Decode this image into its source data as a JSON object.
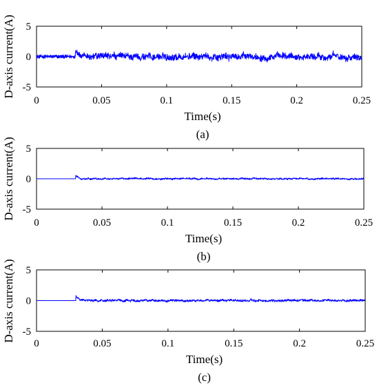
{
  "figure": {
    "colors": {
      "signal": "#0000ff",
      "axis": "#000000",
      "background": "#ffffff"
    }
  },
  "chart_data": [
    {
      "type": "line",
      "caption": "(a)",
      "xlabel": "Time(s)",
      "ylabel": "D-axis current(A)",
      "xlim": [
        0,
        0.25
      ],
      "ylim": [
        -5,
        5
      ],
      "x_ticks": [
        "0",
        "0.05",
        "0.1",
        "0.15",
        "0.2",
        "0.25"
      ],
      "y_ticks": [
        "5",
        "0",
        "-5"
      ],
      "grid": false,
      "series": [
        {
          "color": "#0000ff",
          "description_points": {
            "x": [
              0,
              0.03,
              0.032,
              0.05,
              0.1,
              0.15,
              0.2,
              0.25
            ],
            "y": [
              0,
              0,
              1.3,
              -1.0,
              0.9,
              -1.1,
              1.0,
              0
            ]
          },
          "noise_amplitude_before_0.03": 0.3,
          "noise_amplitude_after_0.03": 1.0
        }
      ]
    },
    {
      "type": "line",
      "caption": "(b)",
      "xlabel": "Time(s)",
      "ylabel": "D-axis current(A)",
      "xlim": [
        0,
        0.25
      ],
      "ylim": [
        -5,
        5
      ],
      "x_ticks": [
        "0",
        "0.05",
        "0.1",
        "0.15",
        "0.2",
        "0.25"
      ],
      "y_ticks": [
        "5",
        "0",
        "-5"
      ],
      "grid": false,
      "series": [
        {
          "color": "#0000ff",
          "description_points": {
            "x": [
              0,
              0.03,
              0.032,
              0.035,
              0.1,
              0.25
            ],
            "y": [
              0,
              0,
              0.5,
              -0.3,
              0.2,
              0
            ]
          },
          "noise_amplitude_before_0.03": 0.0,
          "noise_amplitude_after_0.03": 0.25
        }
      ]
    },
    {
      "type": "line",
      "caption": "(c)",
      "xlabel": "Time(s)",
      "ylabel": "D-axis current(A)",
      "xlim": [
        0,
        0.25
      ],
      "ylim": [
        -5,
        5
      ],
      "x_ticks": [
        "0",
        "0.05",
        "0.1",
        "0.15",
        "0.2",
        "0.25"
      ],
      "y_ticks": [
        "5",
        "0",
        "-5"
      ],
      "grid": false,
      "series": [
        {
          "color": "#0000ff",
          "description_points": {
            "x": [
              0,
              0.03,
              0.032,
              0.035,
              0.1,
              0.25
            ],
            "y": [
              0,
              0,
              0.7,
              -0.4,
              0.3,
              0
            ]
          },
          "noise_amplitude_before_0.03": 0.0,
          "noise_amplitude_after_0.03": 0.35
        }
      ]
    }
  ]
}
